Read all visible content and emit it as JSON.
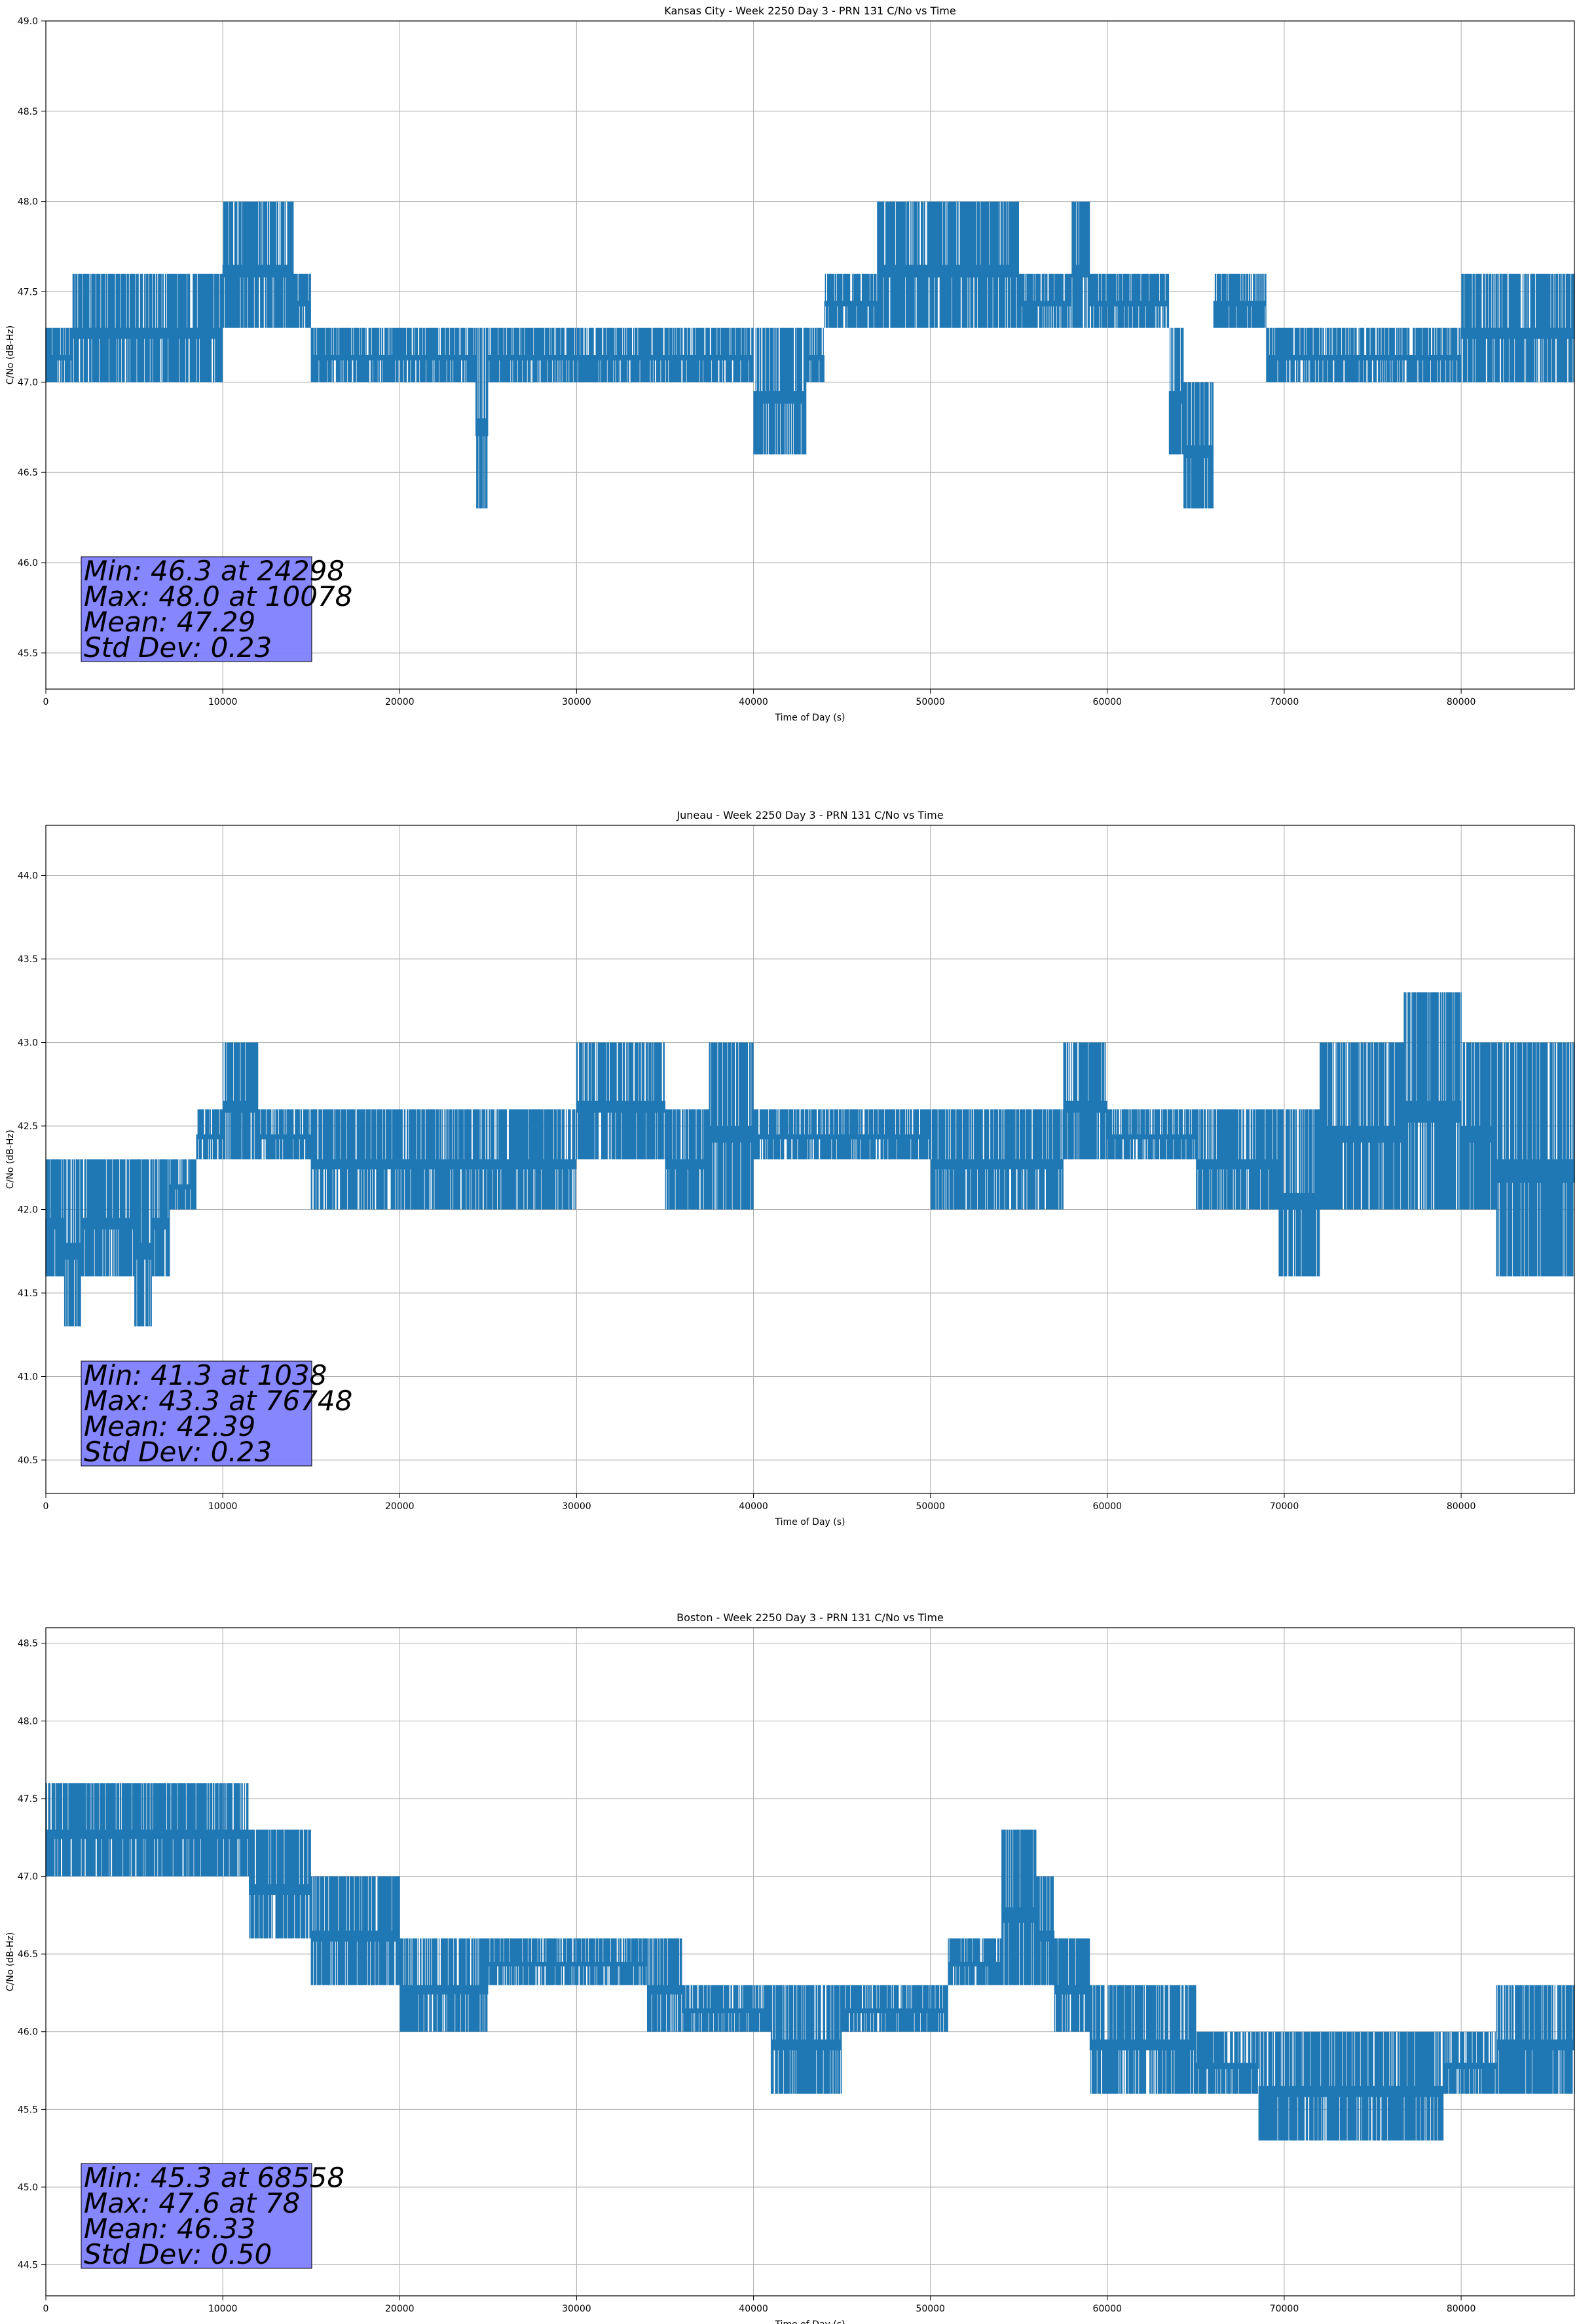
{
  "chart_data": [
    {
      "type": "line",
      "title": "Kansas City - Week 2250 Day 3 - PRN 131 C/No vs Time",
      "xlabel": "Time of Day (s)",
      "ylabel": "C/No (dB-Hz)",
      "xlim": [
        0,
        86400
      ],
      "ylim": [
        45.3,
        49.0
      ],
      "xticks": [
        0,
        10000,
        20000,
        30000,
        40000,
        50000,
        60000,
        70000,
        80000
      ],
      "yticks": [
        45.5,
        46.0,
        46.5,
        47.0,
        47.5,
        48.0,
        48.5,
        49.0
      ],
      "grid": true,
      "line_color": "#1f77b4",
      "series": [
        {
          "x": [
            0,
            1500,
            3000,
            5000,
            8000,
            10000,
            12000,
            14000,
            15000,
            17000,
            20000,
            24298,
            25000,
            30000,
            35000,
            40000,
            43000,
            44000,
            47000,
            50000,
            52000,
            55000,
            58000,
            59000,
            62000,
            63500,
            64300,
            64700,
            66000,
            69000,
            72000,
            76000,
            80000,
            86400
          ],
          "lower": [
            47.0,
            47.0,
            47.0,
            47.0,
            47.0,
            47.3,
            47.3,
            47.3,
            47.0,
            47.0,
            47.0,
            46.3,
            47.0,
            47.0,
            47.0,
            46.6,
            47.0,
            47.3,
            47.3,
            47.3,
            47.3,
            47.3,
            47.3,
            47.3,
            47.3,
            46.6,
            46.3,
            46.3,
            47.3,
            47.0,
            47.0,
            47.0,
            47.0,
            47.0
          ],
          "upper": [
            47.3,
            47.6,
            47.6,
            47.6,
            47.6,
            48.0,
            48.0,
            47.6,
            47.3,
            47.3,
            47.3,
            47.3,
            47.3,
            47.3,
            47.3,
            47.3,
            47.3,
            47.6,
            48.0,
            48.0,
            48.0,
            47.6,
            48.0,
            47.6,
            47.6,
            47.3,
            47.0,
            47.0,
            47.6,
            47.3,
            47.3,
            47.3,
            47.6,
            47.6
          ]
        }
      ],
      "stats_lines": [
        "Min: 46.3 at 24298",
        "Max: 48.0 at 10078",
        "Mean: 47.29",
        "Std Dev: 0.23"
      ],
      "stats_box_color": "#8080ff"
    },
    {
      "type": "line",
      "title": "Juneau - Week 2250 Day 3 - PRN 131 C/No vs Time",
      "xlabel": "Time of Day (s)",
      "ylabel": "C/No (dB-Hz)",
      "xlim": [
        0,
        86400
      ],
      "ylim": [
        40.3,
        44.3
      ],
      "xticks": [
        0,
        10000,
        20000,
        30000,
        40000,
        50000,
        60000,
        70000,
        80000
      ],
      "yticks": [
        40.5,
        41.0,
        41.5,
        42.0,
        42.5,
        43.0,
        43.5,
        44.0
      ],
      "grid": true,
      "line_color": "#1f77b4",
      "series": [
        {
          "x": [
            0,
            1038,
            2000,
            4000,
            5000,
            6000,
            7000,
            8500,
            10000,
            12000,
            15000,
            20000,
            25000,
            30000,
            35000,
            37500,
            40000,
            45000,
            50000,
            55000,
            57500,
            60000,
            65000,
            69700,
            72000,
            75000,
            76748,
            78000,
            80000,
            82000,
            84000,
            86400
          ],
          "lower": [
            41.6,
            41.3,
            41.6,
            41.6,
            41.3,
            41.6,
            42.0,
            42.3,
            42.3,
            42.3,
            42.0,
            42.0,
            42.0,
            42.3,
            42.0,
            42.0,
            42.3,
            42.3,
            42.0,
            42.0,
            42.3,
            42.3,
            42.0,
            41.6,
            42.0,
            42.0,
            42.0,
            42.0,
            42.0,
            41.6,
            41.6,
            42.0
          ],
          "upper": [
            42.3,
            42.3,
            42.3,
            42.3,
            42.3,
            42.3,
            42.3,
            42.6,
            43.0,
            42.6,
            42.6,
            42.6,
            42.6,
            43.0,
            42.6,
            43.0,
            42.6,
            42.6,
            42.6,
            42.6,
            43.0,
            42.6,
            42.6,
            42.6,
            43.0,
            43.0,
            43.3,
            43.3,
            43.0,
            43.0,
            43.0,
            43.0
          ]
        }
      ],
      "stats_lines": [
        "Min: 41.3 at 1038",
        "Max: 43.3 at 76748",
        "Mean: 42.39",
        "Std Dev: 0.23"
      ],
      "stats_box_color": "#8080ff"
    },
    {
      "type": "line",
      "title": "Boston - Week 2250 Day 3 - PRN 131 C/No vs Time",
      "xlabel": "Time of Day (s)",
      "ylabel": "C/No (dB-Hz)",
      "xlim": [
        0,
        86400
      ],
      "ylim": [
        44.3,
        48.6
      ],
      "xticks": [
        0,
        10000,
        20000,
        30000,
        40000,
        50000,
        60000,
        70000,
        80000
      ],
      "yticks": [
        44.5,
        45.0,
        45.5,
        46.0,
        46.5,
        47.0,
        47.5,
        48.0,
        48.5
      ],
      "grid": true,
      "line_color": "#1f77b4",
      "series": [
        {
          "x": [
            0,
            78,
            2000,
            6000,
            10000,
            11500,
            14000,
            15000,
            18000,
            20000,
            25000,
            30000,
            34000,
            36000,
            41000,
            45000,
            50000,
            51000,
            54000,
            56000,
            57000,
            59000,
            64000,
            65000,
            68558,
            70000,
            74000,
            78000,
            79000,
            82000,
            86400
          ],
          "lower": [
            47.0,
            47.0,
            47.0,
            47.0,
            47.0,
            46.6,
            46.6,
            46.3,
            46.3,
            46.0,
            46.3,
            46.3,
            46.0,
            46.0,
            45.6,
            46.0,
            46.0,
            46.3,
            46.3,
            46.3,
            46.0,
            45.6,
            45.6,
            45.6,
            45.3,
            45.3,
            45.3,
            45.3,
            45.6,
            45.6,
            45.6
          ],
          "upper": [
            47.6,
            47.6,
            47.6,
            47.6,
            47.6,
            47.3,
            47.3,
            47.0,
            47.0,
            46.6,
            46.6,
            46.6,
            46.6,
            46.3,
            46.3,
            46.3,
            46.3,
            46.6,
            47.3,
            47.0,
            46.6,
            46.3,
            46.3,
            46.0,
            46.0,
            46.0,
            46.0,
            46.0,
            46.0,
            46.3,
            46.3
          ]
        }
      ],
      "stats_lines": [
        "Min: 45.3 at 68558",
        "Max: 47.6 at 78",
        "Mean: 46.33",
        "Std Dev: 0.50"
      ],
      "stats_box_color": "#8080ff"
    }
  ]
}
